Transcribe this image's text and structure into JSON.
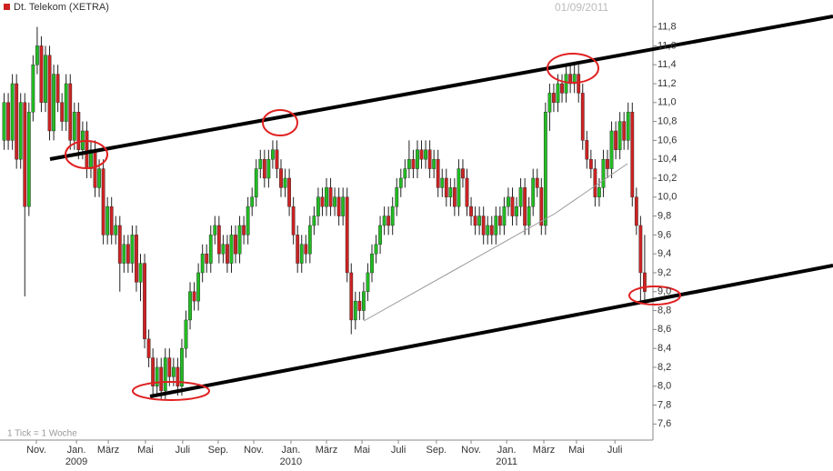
{
  "chart_data": {
    "type": "candlestick",
    "title": "Dt. Telekom (XETRA)",
    "date": "01/09/2011",
    "note": "1 Tick = 1 Woche",
    "up_color": "#22bb22",
    "down_color": "#cc2222",
    "xlim": [
      -1,
      157
    ],
    "ylim": [
      7.43,
      11.95
    ],
    "yticks": [
      {
        "value": 7.6,
        "label": "7,6"
      },
      {
        "value": 7.8,
        "label": "7,8"
      },
      {
        "value": 8.0,
        "label": "8,0"
      },
      {
        "value": 8.2,
        "label": "8,2"
      },
      {
        "value": 8.4,
        "label": "8,4"
      },
      {
        "value": 8.6,
        "label": "8,6"
      },
      {
        "value": 8.8,
        "label": "8,8"
      },
      {
        "value": 9.0,
        "label": "9,0"
      },
      {
        "value": 9.2,
        "label": "9,2"
      },
      {
        "value": 9.4,
        "label": "9,4"
      },
      {
        "value": 9.6,
        "label": "9,6"
      },
      {
        "value": 9.8,
        "label": "9,8"
      },
      {
        "value": 10.0,
        "label": "10,0"
      },
      {
        "value": 10.2,
        "label": "10,2"
      },
      {
        "value": 10.4,
        "label": "10,4"
      },
      {
        "value": 10.6,
        "label": "10,6"
      },
      {
        "value": 10.8,
        "label": "10,8"
      },
      {
        "value": 11.0,
        "label": "11,0"
      },
      {
        "value": 11.2,
        "label": "11,2"
      },
      {
        "value": 11.4,
        "label": "11,4"
      },
      {
        "value": 11.6,
        "label": "11,6"
      },
      {
        "value": 11.8,
        "label": "11,8"
      }
    ],
    "xticks": [
      {
        "value": 7.8,
        "label": "Nov."
      },
      {
        "value": 17.5,
        "label": "Jan."
      },
      {
        "value": 25.2,
        "label": "März"
      },
      {
        "value": 34.2,
        "label": "Mai"
      },
      {
        "value": 43.2,
        "label": "Juli"
      },
      {
        "value": 51.8,
        "label": "Sep."
      },
      {
        "value": 60.4,
        "label": "Nov."
      },
      {
        "value": 69.4,
        "label": "Jan."
      },
      {
        "value": 78,
        "label": "März"
      },
      {
        "value": 86.6,
        "label": "Mai"
      },
      {
        "value": 95.4,
        "label": "Juli"
      },
      {
        "value": 104.6,
        "label": "Sep."
      },
      {
        "value": 113,
        "label": "Nov."
      },
      {
        "value": 121.6,
        "label": "Jan."
      },
      {
        "value": 130.6,
        "label": "März"
      },
      {
        "value": 138.5,
        "label": "Mai"
      },
      {
        "value": 147.8,
        "label": "Juli"
      }
    ],
    "year_labels": [
      {
        "value": 17.5,
        "label": "2009"
      },
      {
        "value": 69.4,
        "label": "2010"
      },
      {
        "value": 121.6,
        "label": "2011"
      }
    ],
    "open": [
      10.6,
      11.0,
      10.6,
      11.2,
      10.4,
      11.0,
      9.9,
      10.9,
      11.4,
      11.6,
      11.0,
      11.5,
      10.7,
      11.3,
      11.0,
      10.8,
      11.2,
      10.6,
      10.9,
      10.5,
      10.7,
      10.3,
      10.5,
      10.1,
      10.3,
      9.6,
      9.9,
      9.6,
      9.7,
      9.3,
      9.5,
      9.3,
      9.6,
      9.1,
      9.3,
      8.5,
      8.3,
      8.0,
      8.2,
      7.95,
      8.3,
      8.1,
      8.2,
      8.0,
      8.4,
      8.7,
      9.0,
      8.9,
      9.2,
      9.4,
      9.3,
      9.6,
      9.7,
      9.4,
      9.5,
      9.3,
      9.6,
      9.4,
      9.7,
      9.6,
      9.9,
      10.0,
      10.3,
      10.4,
      10.2,
      10.4,
      10.5,
      10.3,
      10.1,
      10.2,
      9.9,
      9.6,
      9.3,
      9.5,
      9.4,
      9.7,
      9.8,
      10.0,
      9.9,
      10.1,
      9.9,
      10.0,
      9.8,
      10.0,
      9.2,
      8.7,
      8.9,
      8.8,
      9.0,
      9.2,
      9.4,
      9.5,
      9.7,
      9.8,
      9.7,
      9.9,
      10.1,
      10.2,
      10.3,
      10.4,
      10.3,
      10.5,
      10.4,
      10.5,
      10.3,
      10.4,
      10.1,
      10.2,
      10.0,
      10.1,
      9.9,
      10.3,
      10.2,
      9.9,
      9.8,
      9.7,
      9.8,
      9.6,
      9.7,
      9.6,
      9.8,
      9.7,
      9.9,
      10.0,
      9.8,
      9.9,
      10.1,
      9.7,
      9.9,
      10.2,
      10.1,
      9.7,
      10.9,
      11.1,
      11.0,
      11.2,
      11.1,
      11.3,
      11.2,
      11.3,
      11.1,
      10.6,
      10.4,
      10.3,
      10.0,
      10.1,
      10.4,
      10.3,
      10.7,
      10.5,
      10.8,
      10.6,
      10.9,
      10.0,
      9.7,
      9.2
    ],
    "high": [
      11.1,
      11.1,
      11.3,
      11.3,
      11.1,
      11.1,
      11.0,
      11.5,
      11.8,
      11.7,
      11.6,
      11.6,
      11.4,
      11.4,
      11.1,
      11.3,
      11.3,
      11.0,
      11.0,
      10.8,
      10.8,
      10.6,
      10.6,
      10.4,
      10.4,
      10.0,
      10.0,
      9.8,
      9.8,
      9.6,
      9.6,
      9.7,
      9.7,
      9.4,
      9.4,
      8.6,
      8.4,
      8.3,
      8.3,
      8.4,
      8.4,
      8.3,
      8.3,
      8.5,
      8.8,
      9.1,
      9.1,
      9.3,
      9.5,
      9.5,
      9.7,
      9.8,
      9.8,
      9.6,
      9.6,
      9.7,
      9.7,
      9.8,
      9.8,
      10.0,
      10.1,
      10.4,
      10.5,
      10.5,
      10.5,
      10.6,
      10.6,
      10.4,
      10.3,
      10.3,
      10.0,
      9.7,
      9.6,
      9.6,
      9.8,
      9.9,
      10.1,
      10.1,
      10.2,
      10.2,
      10.1,
      10.1,
      10.1,
      10.1,
      9.3,
      9.0,
      9.0,
      9.1,
      9.3,
      9.5,
      9.6,
      9.8,
      9.9,
      9.9,
      10.0,
      10.2,
      10.3,
      10.4,
      10.6,
      10.5,
      10.6,
      10.6,
      10.6,
      10.6,
      10.5,
      10.5,
      10.3,
      10.3,
      10.2,
      10.2,
      10.4,
      10.4,
      10.3,
      10.0,
      9.9,
      9.9,
      9.9,
      9.8,
      9.8,
      9.9,
      9.9,
      10.0,
      10.1,
      10.1,
      10.0,
      10.2,
      10.2,
      10.0,
      10.3,
      10.3,
      10.2,
      11.0,
      11.2,
      11.2,
      11.3,
      11.3,
      11.4,
      11.4,
      11.4,
      11.4,
      11.2,
      10.7,
      10.5,
      10.4,
      10.2,
      10.5,
      10.5,
      10.8,
      10.8,
      10.9,
      10.9,
      11.0,
      11.0,
      10.1,
      9.8,
      9.6
    ],
    "low": [
      10.5,
      10.5,
      10.5,
      10.3,
      10.3,
      8.95,
      9.8,
      10.8,
      11.3,
      10.9,
      10.9,
      10.6,
      10.6,
      10.9,
      10.7,
      10.7,
      10.5,
      10.5,
      10.4,
      10.4,
      10.2,
      10.2,
      10.0,
      10.0,
      9.5,
      9.5,
      9.5,
      9.5,
      9.0,
      9.2,
      9.2,
      9.2,
      9.0,
      8.9,
      8.4,
      8.2,
      7.9,
      7.9,
      7.85,
      7.85,
      8.0,
      8.0,
      7.9,
      7.9,
      8.3,
      8.6,
      8.8,
      8.8,
      9.1,
      9.2,
      9.2,
      9.5,
      9.3,
      9.3,
      9.2,
      9.2,
      9.3,
      9.3,
      9.5,
      9.5,
      9.8,
      9.9,
      10.2,
      10.1,
      10.1,
      10.3,
      10.2,
      10.0,
      10.0,
      9.8,
      9.5,
      9.2,
      9.2,
      9.3,
      9.3,
      9.6,
      9.7,
      9.8,
      9.8,
      9.8,
      9.8,
      9.7,
      9.7,
      9.1,
      8.55,
      8.6,
      8.7,
      8.7,
      8.9,
      9.1,
      9.3,
      9.4,
      9.6,
      9.6,
      9.6,
      9.8,
      10.0,
      10.1,
      10.2,
      10.2,
      10.2,
      10.3,
      10.3,
      10.2,
      10.2,
      10.0,
      10.0,
      9.9,
      9.9,
      9.8,
      9.8,
      10.1,
      9.8,
      9.7,
      9.6,
      9.6,
      9.5,
      9.5,
      9.5,
      9.5,
      9.6,
      9.6,
      9.8,
      9.7,
      9.7,
      9.8,
      9.6,
      9.6,
      9.8,
      10.0,
      9.6,
      9.6,
      10.7,
      10.9,
      10.9,
      11.0,
      11.0,
      11.1,
      11.1,
      11.0,
      10.5,
      10.3,
      10.2,
      9.9,
      9.9,
      10.0,
      10.2,
      10.2,
      10.4,
      10.4,
      10.5,
      10.5,
      9.9,
      9.6,
      8.9,
      8.9
    ],
    "close": [
      11.0,
      10.6,
      11.2,
      10.4,
      11.0,
      9.9,
      10.9,
      11.4,
      11.6,
      11.0,
      11.5,
      10.7,
      11.3,
      11.0,
      10.8,
      11.2,
      10.6,
      10.9,
      10.5,
      10.7,
      10.3,
      10.5,
      10.1,
      10.3,
      9.6,
      9.9,
      9.6,
      9.7,
      9.3,
      9.5,
      9.3,
      9.6,
      9.1,
      9.3,
      8.5,
      8.3,
      8.0,
      8.2,
      7.95,
      8.3,
      8.1,
      8.2,
      8.0,
      8.4,
      8.7,
      9.0,
      8.9,
      9.2,
      9.4,
      9.3,
      9.6,
      9.7,
      9.4,
      9.5,
      9.3,
      9.6,
      9.4,
      9.7,
      9.6,
      9.9,
      10.0,
      10.3,
      10.4,
      10.2,
      10.4,
      10.5,
      10.3,
      10.1,
      10.2,
      9.9,
      9.6,
      9.3,
      9.5,
      9.4,
      9.7,
      9.8,
      10.0,
      9.9,
      10.1,
      9.9,
      10.0,
      9.8,
      10.0,
      9.2,
      8.7,
      8.9,
      8.8,
      9.0,
      9.2,
      9.4,
      9.5,
      9.7,
      9.8,
      9.7,
      9.9,
      10.1,
      10.2,
      10.3,
      10.4,
      10.3,
      10.5,
      10.4,
      10.5,
      10.3,
      10.4,
      10.1,
      10.2,
      10.0,
      10.1,
      9.9,
      10.3,
      10.2,
      9.9,
      9.8,
      9.7,
      9.8,
      9.6,
      9.7,
      9.6,
      9.8,
      9.7,
      9.9,
      10.0,
      9.8,
      9.9,
      10.1,
      9.7,
      9.9,
      10.2,
      10.1,
      9.7,
      10.9,
      11.1,
      11.0,
      11.2,
      11.1,
      11.3,
      11.2,
      11.3,
      11.1,
      10.6,
      10.4,
      10.3,
      10.0,
      10.1,
      10.4,
      10.3,
      10.7,
      10.5,
      10.8,
      10.6,
      10.9,
      10.0,
      9.7,
      9.2,
      9.0
    ]
  }
}
